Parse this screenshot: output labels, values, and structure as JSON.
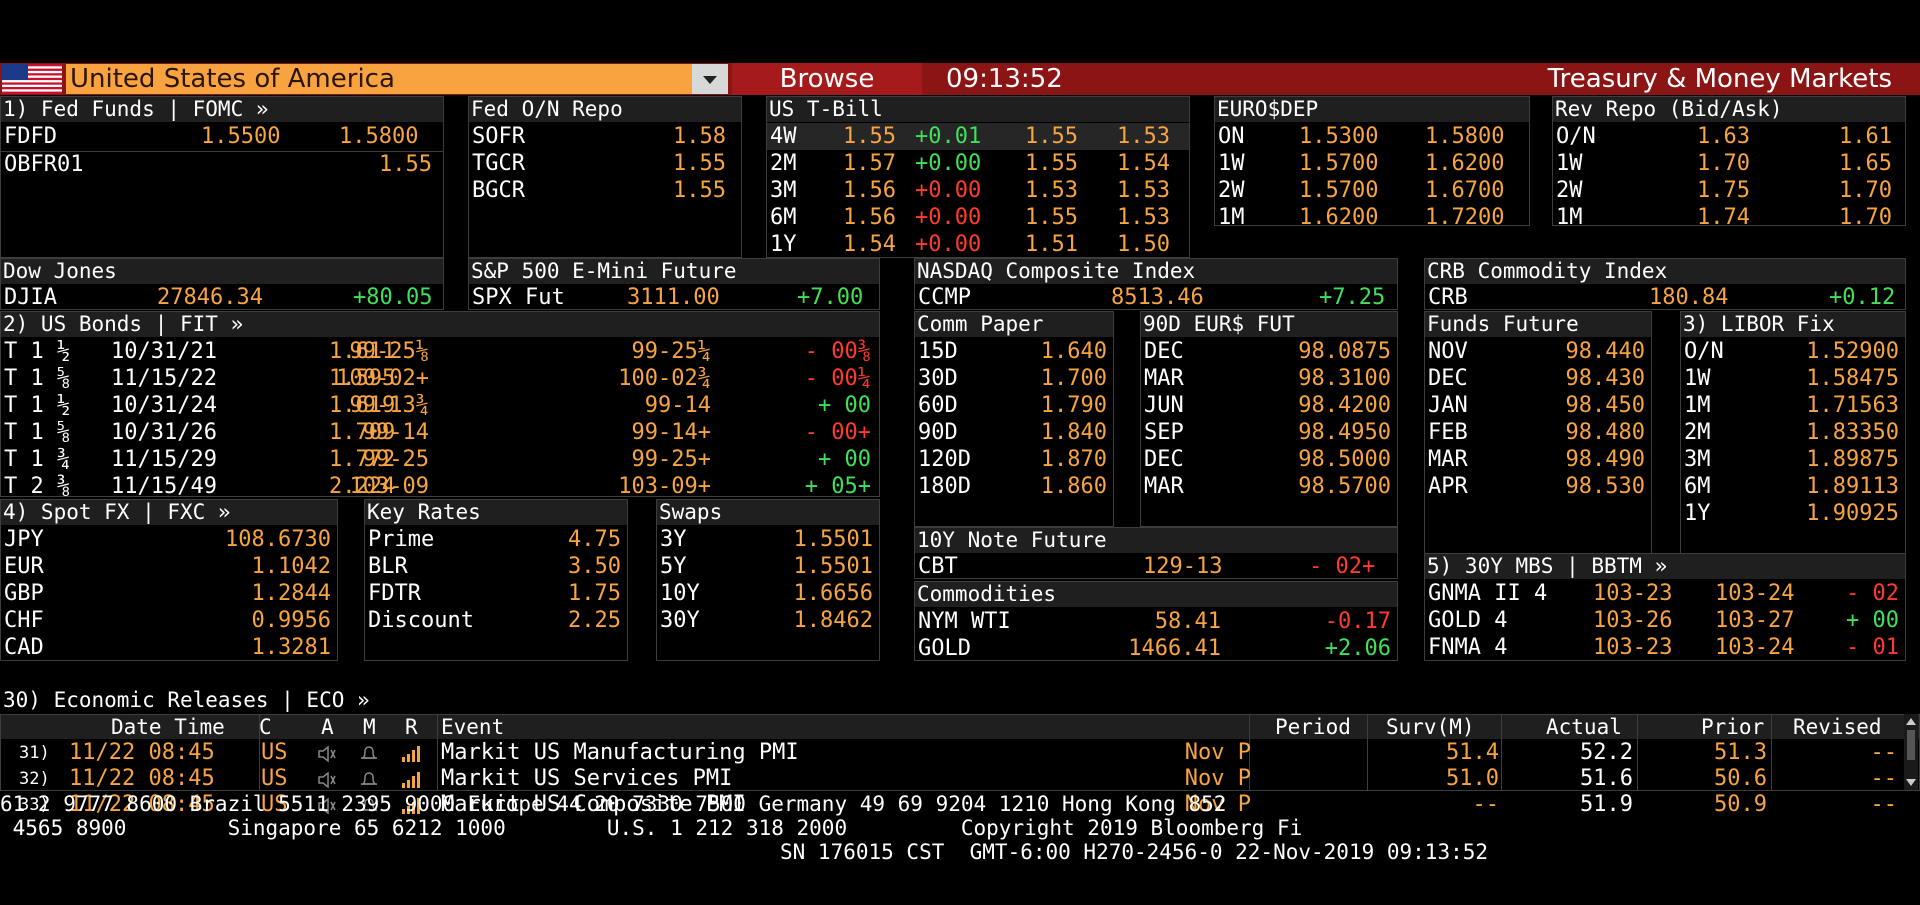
{
  "header": {
    "country": "United States of America",
    "browse_label": "Browse",
    "time": "09:13:52",
    "title": "Treasury & Money Markets",
    "flag_icon": "us-flag-icon"
  },
  "fed_funds": {
    "title": "1) Fed Funds | FOMC »",
    "rows": [
      {
        "name": "FDFD",
        "bid": "1.5500",
        "ask": "1.5800"
      },
      {
        "name": "OBFR01",
        "ask": "1.55"
      }
    ]
  },
  "fed_repo": {
    "title": "Fed O/N Repo",
    "rows": [
      {
        "name": "SOFR",
        "value": "1.58"
      },
      {
        "name": "TGCR",
        "value": "1.55"
      },
      {
        "name": "BGCR",
        "value": "1.55"
      }
    ]
  },
  "tbill": {
    "title": "US T-Bill",
    "rows": [
      {
        "tenor": "4W",
        "yield": "1.55",
        "chg": "+0.01",
        "bid": "1.55",
        "ask": "1.53"
      },
      {
        "tenor": "2M",
        "yield": "1.57",
        "chg": "+0.00",
        "bid": "1.55",
        "ask": "1.54"
      },
      {
        "tenor": "3M",
        "yield": "1.56",
        "chg": "+0.00",
        "bid": "1.53",
        "ask": "1.53"
      },
      {
        "tenor": "6M",
        "yield": "1.56",
        "chg": "+0.00",
        "bid": "1.55",
        "ask": "1.53"
      },
      {
        "tenor": "1Y",
        "yield": "1.54",
        "chg": "+0.00",
        "bid": "1.51",
        "ask": "1.50"
      }
    ]
  },
  "eurodep": {
    "title": "EURO$DEP",
    "rows": [
      {
        "tenor": "ON",
        "bid": "1.5300",
        "ask": "1.5800"
      },
      {
        "tenor": "1W",
        "bid": "1.5700",
        "ask": "1.6200"
      },
      {
        "tenor": "2W",
        "bid": "1.5700",
        "ask": "1.6700"
      },
      {
        "tenor": "1M",
        "bid": "1.6200",
        "ask": "1.7200"
      }
    ]
  },
  "rev_repo": {
    "title": "Rev Repo (Bid/Ask)",
    "rows": [
      {
        "tenor": "O/N",
        "bid": "1.63",
        "ask": "1.61"
      },
      {
        "tenor": "1W",
        "bid": "1.70",
        "ask": "1.65"
      },
      {
        "tenor": "2W",
        "bid": "1.75",
        "ask": "1.70"
      },
      {
        "tenor": "1M",
        "bid": "1.74",
        "ask": "1.70"
      }
    ]
  },
  "dow": {
    "title": "Dow Jones",
    "name": "DJIA",
    "value": "27846.34",
    "chg": "+80.05"
  },
  "spx": {
    "title": "S&P 500 E-Mini Future",
    "name": "SPX Fut",
    "value": "3111.00",
    "chg": "+7.00"
  },
  "nasdaq": {
    "title": "NASDAQ Composite Index",
    "name": "CCMP",
    "value": "8513.46",
    "chg": "+7.25"
  },
  "crb": {
    "title": "CRB Commodity Index",
    "name": "CRB",
    "value": "180.84",
    "chg": "+0.12"
  },
  "bonds": {
    "title": "2) US Bonds | FIT »",
    "rows": [
      {
        "coupon": "T 1 ½",
        "maturity": "10/31/21",
        "yield": "1.611",
        "bid": "99-25⅛",
        "ask": "99-25¼",
        "chg": "- 00⅜",
        "dir": "r"
      },
      {
        "coupon": "T 1 ⅝",
        "maturity": "11/15/22",
        "yield": "1.595",
        "bid": "100-02+",
        "ask": "100-02¾",
        "chg": "- 00¼",
        "dir": "r"
      },
      {
        "coupon": "T 1 ½",
        "maturity": "10/31/24",
        "yield": "1.619",
        "bid": "99-13¾",
        "ask": "99-14",
        "chg": "+ 00",
        "dir": "g"
      },
      {
        "coupon": "T 1 ⅝",
        "maturity": "10/31/26",
        "yield": "1.709",
        "bid": "99-14",
        "ask": "99-14+",
        "chg": "- 00+",
        "dir": "r"
      },
      {
        "coupon": "T 1 ¾",
        "maturity": "11/15/29",
        "yield": "1.772",
        "bid": "99-25",
        "ask": "99-25+",
        "chg": "+ 00",
        "dir": "g"
      },
      {
        "coupon": "T 2 ⅜",
        "maturity": "11/15/49",
        "yield": "2.224",
        "bid": "103-09",
        "ask": "103-09+",
        "chg": "+ 05+",
        "dir": "g"
      }
    ]
  },
  "comm_paper": {
    "title": "Comm Paper",
    "rows": [
      {
        "tenor": "15D",
        "value": "1.640"
      },
      {
        "tenor": "30D",
        "value": "1.700"
      },
      {
        "tenor": "60D",
        "value": "1.790"
      },
      {
        "tenor": "90D",
        "value": "1.840"
      },
      {
        "tenor": "120D",
        "value": "1.870"
      },
      {
        "tenor": "180D",
        "value": "1.860"
      }
    ]
  },
  "eur_fut": {
    "title": "90D EUR$ FUT",
    "rows": [
      {
        "month": "DEC",
        "value": "98.0875"
      },
      {
        "month": "MAR",
        "value": "98.3100"
      },
      {
        "month": "JUN",
        "value": "98.4200"
      },
      {
        "month": "SEP",
        "value": "98.4950"
      },
      {
        "month": "DEC",
        "value": "98.5000"
      },
      {
        "month": "MAR",
        "value": "98.5700"
      }
    ]
  },
  "funds_future": {
    "title": "Funds Future",
    "rows": [
      {
        "month": "NOV",
        "value": "98.440"
      },
      {
        "month": "DEC",
        "value": "98.430"
      },
      {
        "month": "JAN",
        "value": "98.450"
      },
      {
        "month": "FEB",
        "value": "98.480"
      },
      {
        "month": "MAR",
        "value": "98.490"
      },
      {
        "month": "APR",
        "value": "98.530"
      }
    ]
  },
  "libor": {
    "title": "3) LIBOR Fix",
    "rows": [
      {
        "tenor": "O/N",
        "value": "1.52900"
      },
      {
        "tenor": "1W",
        "value": "1.58475"
      },
      {
        "tenor": "1M",
        "value": "1.71563"
      },
      {
        "tenor": "2M",
        "value": "1.83350"
      },
      {
        "tenor": "3M",
        "value": "1.89875"
      },
      {
        "tenor": "6M",
        "value": "1.89113"
      },
      {
        "tenor": "1Y",
        "value": "1.90925"
      }
    ]
  },
  "spot_fx": {
    "title": "4) Spot FX | FXC »",
    "rows": [
      {
        "ccy": "JPY",
        "value": "108.6730"
      },
      {
        "ccy": "EUR",
        "value": "1.1042"
      },
      {
        "ccy": "GBP",
        "value": "1.2844"
      },
      {
        "ccy": "CHF",
        "value": "0.9956"
      },
      {
        "ccy": "CAD",
        "value": "1.3281"
      }
    ]
  },
  "key_rates": {
    "title": "Key Rates",
    "rows": [
      {
        "name": "Prime",
        "value": "4.75"
      },
      {
        "name": "BLR",
        "value": "3.50"
      },
      {
        "name": "FDTR",
        "value": "1.75"
      },
      {
        "name": "Discount",
        "value": "2.25"
      }
    ]
  },
  "swaps": {
    "title": "Swaps",
    "rows": [
      {
        "tenor": "3Y",
        "value": "1.5501"
      },
      {
        "tenor": "5Y",
        "value": "1.5501"
      },
      {
        "tenor": "10Y",
        "value": "1.6656"
      },
      {
        "tenor": "30Y",
        "value": "1.8462"
      }
    ]
  },
  "note_future": {
    "title": "10Y Note Future",
    "name": "CBT",
    "value": "129-13",
    "chg": "- 02+"
  },
  "commodities": {
    "title": "Commodities",
    "rows": [
      {
        "name": "NYM WTI",
        "value": "58.41",
        "chg": "-0.17",
        "dir": "r"
      },
      {
        "name": "GOLD",
        "value": "1466.41",
        "chg": "+2.06",
        "dir": "g"
      }
    ]
  },
  "mbs": {
    "title": "5) 30Y MBS | BBTM »",
    "rows": [
      {
        "name": "GNMA II 4",
        "bid": "103-23",
        "ask": "103-24",
        "chg": "- 02",
        "dir": "r"
      },
      {
        "name": "GOLD 4",
        "bid": "103-26",
        "ask": "103-27",
        "chg": "+ 00",
        "dir": "g"
      },
      {
        "name": "FNMA 4",
        "bid": "103-23",
        "ask": "103-24",
        "chg": "- 01",
        "dir": "r"
      }
    ]
  },
  "eco": {
    "title": "30) Economic Releases | ECO »",
    "headers": {
      "date_time": "Date Time",
      "c": "C",
      "a": "A",
      "m": "M",
      "r": "R",
      "event": "Event",
      "period": "Period",
      "surv": "Surv(M)",
      "actual": "Actual",
      "prior": "Prior",
      "revised": "Revised"
    },
    "rows": [
      {
        "num": "31)",
        "date_time": "11/22 08:45",
        "c": "US",
        "event": "Markit US Manufacturing PMI",
        "period": "Nov P",
        "surv": "51.4",
        "actual": "52.2",
        "prior": "51.3",
        "revised": "--"
      },
      {
        "num": "32)",
        "date_time": "11/22 08:45",
        "c": "US",
        "event": "Markit US Services PMI",
        "period": "Nov P",
        "surv": "51.0",
        "actual": "51.6",
        "prior": "50.6",
        "revised": "--"
      },
      {
        "num": "33)",
        "date_time": "11/22 08:45",
        "c": "US",
        "event": "Markit US Composite PMI",
        "period": "Nov P",
        "surv": "--",
        "actual": "51.9",
        "prior": "50.9",
        "revised": "--"
      }
    ]
  },
  "footer": {
    "line1": "61 2 9777 8600 Brazil 5511 2395 9000 Europe 44 20 7330 7500 Germany 49 69 9204 1210 Hong Kong 852",
    "line2": " 4565 8900        Singapore 65 6212 1000        U.S. 1 212 318 2000         Copyright 2019 Bloomberg Fi",
    "line3": "SN 176015 CST  GMT-6:00 H270-2456-0 22-Nov-2019 09:13:52"
  }
}
